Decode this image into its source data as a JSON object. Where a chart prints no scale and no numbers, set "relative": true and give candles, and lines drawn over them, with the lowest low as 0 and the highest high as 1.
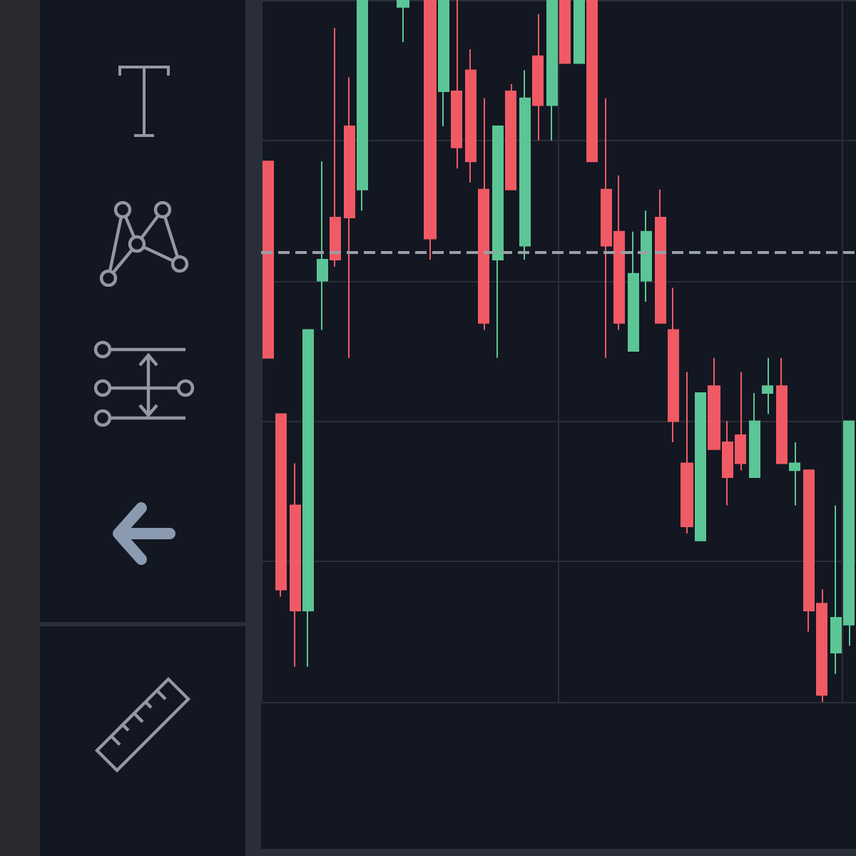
{
  "chart_data": {
    "type": "candlestick",
    "relative": true,
    "grid": true,
    "categories": [
      null,
      null,
      null,
      null,
      null,
      null,
      null,
      null,
      null,
      null,
      null,
      null,
      null,
      null,
      null,
      null,
      null,
      null,
      null,
      null,
      null,
      null,
      null,
      null,
      null,
      null,
      null,
      null,
      null,
      null,
      null,
      null,
      null,
      null,
      null,
      null,
      null,
      null,
      null,
      null,
      null,
      null,
      null,
      null
    ],
    "ohlc": [
      [
        0.77,
        0.77,
        0.49,
        0.49
      ],
      [
        0.41,
        0.41,
        0.15,
        0.16
      ],
      [
        0.28,
        0.34,
        0.05,
        0.13
      ],
      [
        0.13,
        0.53,
        0.05,
        0.53
      ],
      [
        0.6,
        0.77,
        0.53,
        0.63
      ],
      [
        0.69,
        0.96,
        0.62,
        0.63
      ],
      [
        0.82,
        0.89,
        0.49,
        0.69
      ],
      [
        0.73,
        1,
        0.7,
        1
      ],
      null,
      null,
      [
        0.99,
        1,
        0.94,
        1
      ],
      null,
      [
        1,
        1,
        0.63,
        0.66
      ],
      [
        0.87,
        1,
        0.82,
        1
      ],
      [
        0.87,
        1,
        0.76,
        0.79
      ],
      [
        0.9,
        0.93,
        0.74,
        0.77
      ],
      [
        0.73,
        0.86,
        0.53,
        0.54
      ],
      [
        0.63,
        0.82,
        0.49,
        0.82
      ],
      [
        0.87,
        0.88,
        0.73,
        0.73
      ],
      [
        0.65,
        0.9,
        0.63,
        0.86
      ],
      [
        0.92,
        0.98,
        0.8,
        0.85
      ],
      [
        0.85,
        1,
        0.8,
        1
      ],
      [
        1,
        1,
        0.91,
        0.91
      ],
      [
        0.91,
        1,
        0.91,
        1
      ],
      [
        1,
        1,
        0.77,
        0.77
      ],
      [
        0.73,
        0.86,
        0.49,
        0.65
      ],
      [
        0.67,
        0.75,
        0.53,
        0.54
      ],
      [
        0.5,
        0.67,
        0.5,
        0.61
      ],
      [
        0.6,
        0.7,
        0.57,
        0.67
      ],
      [
        0.69,
        0.73,
        0.54,
        0.54
      ],
      [
        0.53,
        0.59,
        0.37,
        0.4
      ],
      [
        0.34,
        0.47,
        0.24,
        0.25
      ],
      [
        0.23,
        0.44,
        0.23,
        0.44
      ],
      [
        0.45,
        0.49,
        0.36,
        0.36
      ],
      [
        0.37,
        0.4,
        0.28,
        0.32
      ],
      [
        0.38,
        0.47,
        0.33,
        0.34
      ],
      [
        0.32,
        0.44,
        0.32,
        0.4
      ],
      [
        0.44,
        0.49,
        0.41,
        0.45
      ],
      [
        0.45,
        0.49,
        0.34,
        0.34
      ],
      [
        0.33,
        0.37,
        0.28,
        0.34
      ],
      [
        0.33,
        0.33,
        0.1,
        0.13
      ],
      [
        0.14,
        0.16,
        0.0,
        0.01
      ],
      [
        0.07,
        0.28,
        0.04,
        0.12
      ],
      [
        0.11,
        0.4,
        0.08,
        0.4
      ]
    ],
    "colors": [
      "#f05a64",
      "#f05a64",
      "#f05a64",
      "#5cc595",
      "#5cc595",
      "#f05a64",
      "#f05a64",
      "#5cc595",
      null,
      null,
      "#5cc595",
      null,
      "#f05a64",
      "#5cc595",
      "#f05a64",
      "#f05a64",
      "#f05a64",
      "#5cc595",
      "#f05a64",
      "#5cc595",
      "#f05a64",
      "#5cc595",
      "#f05a64",
      "#5cc595",
      "#f05a64",
      "#f05a64",
      "#f05a64",
      "#5cc595",
      "#5cc595",
      "#f05a64",
      "#f05a64",
      "#f05a64",
      "#5cc595",
      "#f05a64",
      "#f05a64",
      "#f05a64",
      "#5cc595",
      "#5cc595",
      "#f05a64",
      "#5cc595",
      "#f05a64",
      "#f05a64",
      "#5cc595",
      "#5cc595"
    ],
    "ref_lines": [
      {
        "axis": "y",
        "value": 0.64,
        "color": "#9aa0a8",
        "line_style": "dashed"
      }
    ]
  }
}
